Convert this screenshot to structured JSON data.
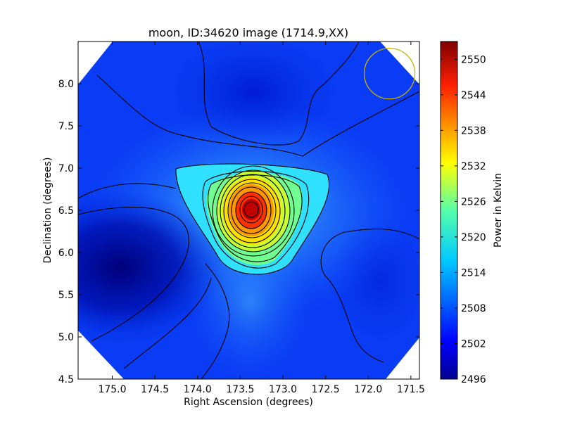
{
  "chart_data": {
    "type": "heatmap",
    "title": "moon, ID:34620 image (1714.9,XX)",
    "xlabel": "Right Ascension (degrees)",
    "ylabel": "Declination (degrees)",
    "colorbar_label": "Power in Kelvin",
    "x_inverted": true,
    "xlim": [
      175.4,
      171.4
    ],
    "ylim": [
      4.5,
      8.5
    ],
    "x_ticks": [
      175.0,
      174.5,
      174.0,
      173.5,
      173.0,
      172.5,
      172.0,
      171.5
    ],
    "x_tick_labels": [
      "175.0",
      "174.5",
      "174.0",
      "173.5",
      "173.0",
      "172.5",
      "172.0",
      "171.5"
    ],
    "y_ticks": [
      4.5,
      5.0,
      5.5,
      6.0,
      6.5,
      7.0,
      7.5,
      8.0
    ],
    "y_tick_labels": [
      "4.5",
      "5.0",
      "5.5",
      "6.0",
      "6.5",
      "7.0",
      "7.5",
      "8.0"
    ],
    "colorbar_range": [
      2496,
      2553
    ],
    "colorbar_ticks": [
      2496,
      2502,
      2508,
      2514,
      2520,
      2526,
      2532,
      2538,
      2544,
      2550
    ],
    "colorbar_tick_labels": [
      "2496",
      "2502",
      "2508",
      "2514",
      "2520",
      "2526",
      "2532",
      "2538",
      "2544",
      "2550"
    ],
    "colormap": "jet",
    "peak": {
      "ra": 173.35,
      "dec": 6.5,
      "value": 2553
    },
    "beam_circle": {
      "ra": 171.75,
      "dec": 8.12,
      "radius_deg": 0.3,
      "color": "#c8b400"
    },
    "contours": "black"
  }
}
